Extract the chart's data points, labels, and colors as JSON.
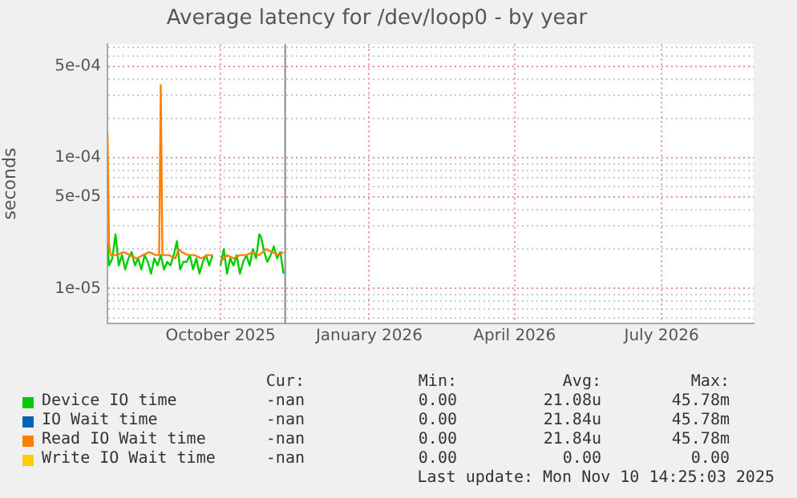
{
  "chart_data": {
    "type": "line",
    "title": "Average latency for /dev/loop0 - by year",
    "ylabel": "seconds",
    "log": "y",
    "grid": true,
    "legend": "bottom",
    "marker": "none",
    "line_style": "solid",
    "xlim": [
      "2025-07-23",
      "2026-08-27"
    ],
    "xticks": [
      {
        "value": "2025-10-01",
        "label": "October 2025"
      },
      {
        "value": "2026-01-01",
        "label": "January 2026"
      },
      {
        "value": "2026-04-01",
        "label": "April 2026"
      },
      {
        "value": "2026-07-01",
        "label": "July 2026"
      }
    ],
    "ylim": [
      5.4e-06,
      0.00074
    ],
    "yticks": [
      {
        "value": 6e-06,
        "label": null
      },
      {
        "value": 7e-06,
        "label": null
      },
      {
        "value": 8e-06,
        "label": null
      },
      {
        "value": 9e-06,
        "label": null
      },
      {
        "value": 1e-05,
        "label": "1e-05"
      },
      {
        "value": 2e-05,
        "label": null
      },
      {
        "value": 3e-05,
        "label": null
      },
      {
        "value": 4e-05,
        "label": null
      },
      {
        "value": 5e-05,
        "label": "5e-05"
      },
      {
        "value": 6e-05,
        "label": null
      },
      {
        "value": 7e-05,
        "label": null
      },
      {
        "value": 8e-05,
        "label": null
      },
      {
        "value": 9e-05,
        "label": null
      },
      {
        "value": 0.0001,
        "label": "1e-04"
      },
      {
        "value": 0.0002,
        "label": null
      },
      {
        "value": 0.0003,
        "label": null
      },
      {
        "value": 0.0004,
        "label": null
      },
      {
        "value": 0.0005,
        "label": "5e-04"
      },
      {
        "value": 0.0006,
        "label": null
      },
      {
        "value": 0.0007,
        "label": null
      }
    ],
    "ref_lines": [
      {
        "axis": "x",
        "value": "2025-11-10",
        "color": "#888888"
      }
    ],
    "series": [
      {
        "name": "Device IO time",
        "color": "#00cc00",
        "x": [
          "2025-07-23",
          "2025-07-24",
          "2025-07-26",
          "2025-07-28",
          "2025-07-30",
          "2025-08-01",
          "2025-08-03",
          "2025-08-05",
          "2025-08-07",
          "2025-08-09",
          "2025-08-11",
          "2025-08-13",
          "2025-08-15",
          "2025-08-17",
          "2025-08-19",
          "2025-08-21",
          "2025-08-23",
          "2025-08-25",
          "2025-08-27",
          "2025-08-29",
          "2025-08-31",
          "2025-09-02",
          "2025-09-04",
          "2025-09-06",
          "2025-09-08",
          "2025-09-10",
          "2025-09-12",
          "2025-09-14",
          "2025-09-16",
          "2025-09-18",
          "2025-09-20",
          "2025-09-22",
          "2025-09-24",
          "2025-09-26",
          "2025-09-28",
          "2025-10-01",
          "2025-10-03",
          "2025-10-05",
          "2025-10-07",
          "2025-10-09",
          "2025-10-11",
          "2025-10-13",
          "2025-10-15",
          "2025-10-17",
          "2025-10-19",
          "2025-10-21",
          "2025-10-23",
          "2025-10-25",
          "2025-10-26",
          "2025-10-28",
          "2025-10-30",
          "2025-11-01",
          "2025-11-03",
          "2025-11-05",
          "2025-11-07",
          "2025-11-09"
        ],
        "values": [
          2.2e-05,
          1.5e-05,
          1.7e-05,
          2.6e-05,
          1.5e-05,
          1.8e-05,
          1.4e-05,
          1.7e-05,
          1.9e-05,
          1.5e-05,
          1.7e-05,
          1.4e-05,
          1.8e-05,
          1.6e-05,
          1.3e-05,
          1.7e-05,
          1.5e-05,
          1.8e-05,
          1.4e-05,
          1.6e-05,
          1.5e-05,
          1.8e-05,
          2.3e-05,
          1.4e-05,
          1.6e-05,
          1.6e-05,
          1.8e-05,
          1.4e-05,
          1.7e-05,
          1.3e-05,
          1.6e-05,
          1.8e-05,
          1.5e-05,
          1.8e-05,
          null,
          1.5e-05,
          2e-05,
          1.3e-05,
          1.7e-05,
          1.5e-05,
          1.8e-05,
          1.3e-05,
          1.6e-05,
          1.8e-05,
          1.5e-05,
          2e-05,
          1.7e-05,
          2.6e-05,
          2.5e-05,
          1.9e-05,
          1.6e-05,
          1.8e-05,
          2.1e-05,
          1.7e-05,
          1.9e-05,
          1.3e-05
        ]
      },
      {
        "name": "IO Wait time",
        "color": "#0066b3"
      },
      {
        "name": "Read IO Wait time",
        "color": "#ff8000",
        "x": [
          "2025-07-23",
          "2025-07-24",
          "2025-07-25",
          "2025-07-29",
          "2025-08-02",
          "2025-08-06",
          "2025-08-10",
          "2025-08-14",
          "2025-08-18",
          "2025-08-22",
          "2025-08-24",
          "2025-08-25",
          "2025-08-26",
          "2025-08-30",
          "2025-09-03",
          "2025-09-05",
          "2025-09-07",
          "2025-09-11",
          "2025-09-15",
          "2025-09-19",
          "2025-09-23",
          "2025-09-26",
          "2025-09-28",
          "2025-10-01",
          "2025-10-05",
          "2025-10-09",
          "2025-10-13",
          "2025-10-17",
          "2025-10-21",
          "2025-10-25",
          "2025-10-29",
          "2025-11-02",
          "2025-11-06",
          "2025-11-09"
        ],
        "values": [
          0.000157,
          2.2e-05,
          1.8e-05,
          1.8e-05,
          1.9e-05,
          1.8e-05,
          1.7e-05,
          1.8e-05,
          1.9e-05,
          1.8e-05,
          1.8e-05,
          0.00036,
          1.8e-05,
          1.8e-05,
          1.7e-05,
          2e-05,
          1.9e-05,
          1.8e-05,
          1.8e-05,
          1.7e-05,
          1.8e-05,
          1.8e-05,
          null,
          1.6e-05,
          1.8e-05,
          1.7e-05,
          1.8e-05,
          1.8e-05,
          1.9e-05,
          1.8e-05,
          2e-05,
          1.9e-05,
          1.8e-05,
          1.9e-05
        ]
      },
      {
        "name": "Write IO Wait time",
        "color": "#ffcc00"
      }
    ],
    "annotations": [
      "Cur:",
      "Min:",
      "Avg:",
      "Max:",
      "-nan",
      "0.00",
      "21.08u",
      "45.78m",
      "-nan",
      "0.00",
      "21.84u",
      "45.78m",
      "-nan",
      "0.00",
      "21.84u",
      "45.78m",
      "-nan",
      "0.00",
      "0.00",
      "0.00",
      "Last update: Mon Nov 10 14:25:03 2025"
    ]
  }
}
